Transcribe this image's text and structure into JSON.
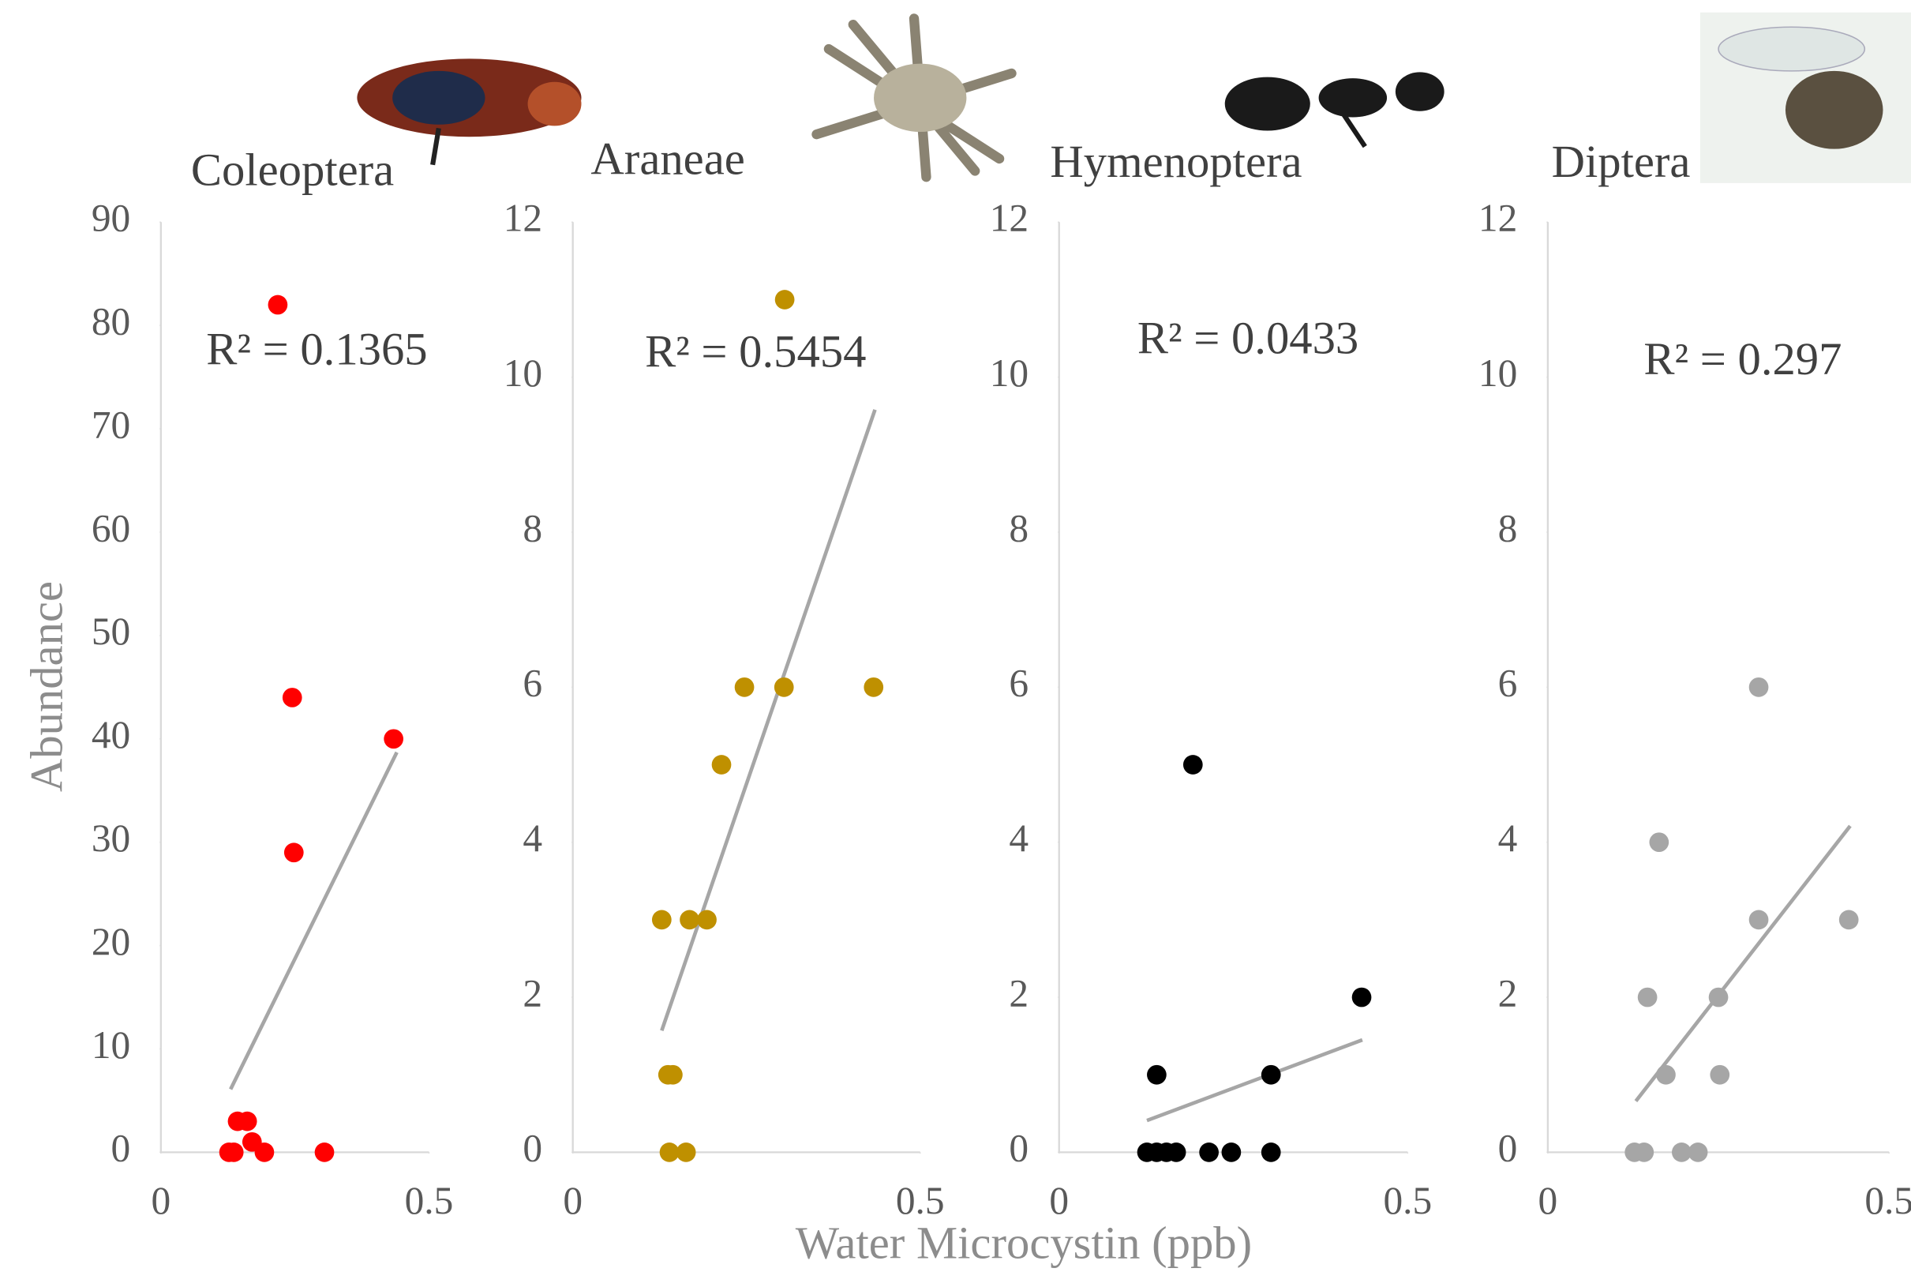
{
  "y_label": "Abundance",
  "x_label": "Water Microcystin (ppb)",
  "chart_data": [
    {
      "type": "scatter",
      "title": "Coleoptera",
      "annotation": "R² = 0.1365",
      "xlim": [
        0,
        0.5
      ],
      "xticks": [
        0,
        0.5
      ],
      "ylim": [
        0,
        90
      ],
      "yticks": [
        0,
        10,
        20,
        30,
        40,
        50,
        60,
        70,
        80,
        90
      ],
      "series": [
        {
          "name": "Coleoptera",
          "color": "#ff0000",
          "x": [
            0.218,
            0.245,
            0.434,
            0.248,
            0.143,
            0.161,
            0.17,
            0.127,
            0.136,
            0.193,
            0.305
          ],
          "values": [
            82,
            44,
            40,
            29,
            3,
            3,
            1,
            0,
            0,
            0,
            0
          ]
        }
      ],
      "trend": {
        "color": "#a6a6a6",
        "x": [
          0.13,
          0.44
        ],
        "y": [
          6.1,
          38.7
        ]
      }
    },
    {
      "type": "scatter",
      "title": "Araneae",
      "annotation": "R² = 0.5454",
      "xlim": [
        0,
        0.5
      ],
      "xticks": [
        0,
        0.5
      ],
      "ylim": [
        0,
        12
      ],
      "yticks": [
        0,
        2,
        4,
        6,
        8,
        10,
        12
      ],
      "series": [
        {
          "name": "Araneae",
          "color": "#bf9000",
          "x": [
            0.305,
            0.247,
            0.304,
            0.433,
            0.214,
            0.128,
            0.168,
            0.193,
            0.137,
            0.144,
            0.139,
            0.163
          ],
          "values": [
            11,
            6,
            6,
            6,
            5,
            3,
            3,
            3,
            1,
            1,
            0,
            0
          ]
        }
      ],
      "trend": {
        "color": "#a6a6a6",
        "x": [
          0.128,
          0.435
        ],
        "y": [
          1.57,
          9.58
        ]
      }
    },
    {
      "type": "scatter",
      "title": "Hymenoptera",
      "annotation": "R² = 0.0433",
      "xlim": [
        0,
        0.5
      ],
      "xticks": [
        0,
        0.5
      ],
      "ylim": [
        0,
        12
      ],
      "yticks": [
        0,
        2,
        4,
        6,
        8,
        10,
        12
      ],
      "series": [
        {
          "name": "Hymenoptera",
          "color": "#000000",
          "x": [
            0.192,
            0.434,
            0.14,
            0.304,
            0.126,
            0.14,
            0.154,
            0.168,
            0.215,
            0.247,
            0.304
          ],
          "values": [
            5,
            2,
            1,
            1,
            0,
            0,
            0,
            0,
            0,
            0,
            0
          ]
        }
      ],
      "trend": {
        "color": "#a6a6a6",
        "x": [
          0.126,
          0.435
        ],
        "y": [
          0.41,
          1.45
        ]
      }
    },
    {
      "type": "scatter",
      "title": "Diptera",
      "annotation": "R² = 0.297",
      "xlim": [
        0,
        0.5
      ],
      "xticks": [
        0,
        0.5
      ],
      "ylim": [
        0,
        12
      ],
      "yticks": [
        0,
        2,
        4,
        6,
        8,
        10,
        12
      ],
      "series": [
        {
          "name": "Diptera",
          "color": "#a6a6a6",
          "x": [
            0.309,
            0.163,
            0.309,
            0.441,
            0.146,
            0.25,
            0.173,
            0.252,
            0.127,
            0.141,
            0.196,
            0.22
          ],
          "values": [
            6,
            4,
            3,
            3,
            2,
            2,
            1,
            1,
            0,
            0,
            0,
            0
          ]
        }
      ],
      "trend": {
        "color": "#a6a6a6",
        "x": [
          0.129,
          0.443
        ],
        "y": [
          0.66,
          4.21
        ]
      }
    }
  ]
}
